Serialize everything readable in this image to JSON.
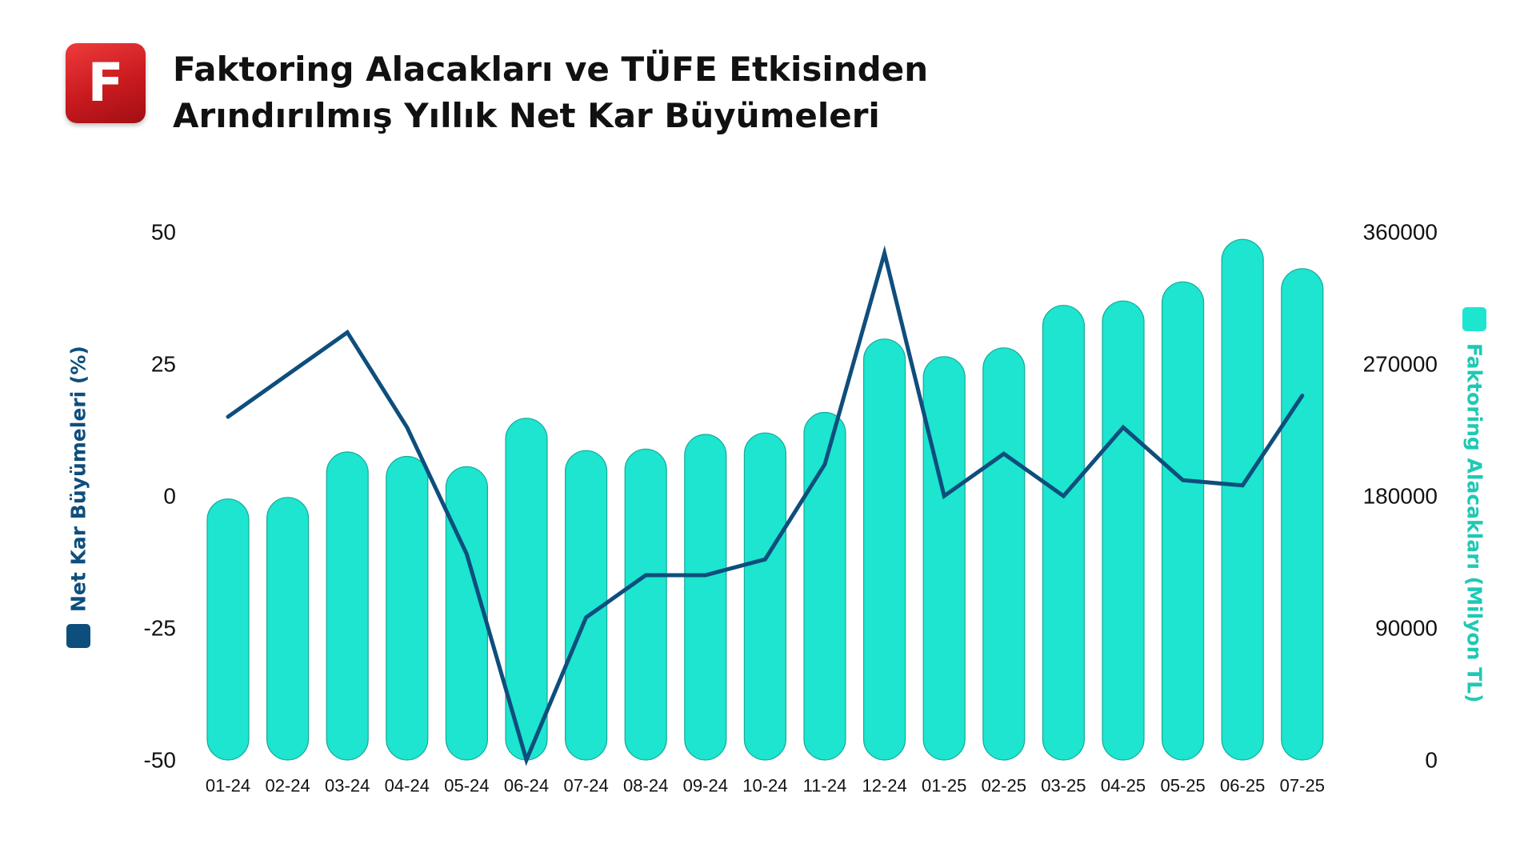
{
  "logo": {
    "letter": "F",
    "color": "#d7262b"
  },
  "title": {
    "line1": "Faktoring Alacakları ve TÜFE Etkisinden",
    "line2": "Arındırılmış Yıllık Net Kar Büyümeleri"
  },
  "chart_data": {
    "type": "bar",
    "categories": [
      "01-24",
      "02-24",
      "03-24",
      "04-24",
      "05-24",
      "06-24",
      "07-24",
      "08-24",
      "09-24",
      "10-24",
      "11-24",
      "12-24",
      "01-25",
      "02-25",
      "03-25",
      "04-25",
      "05-25",
      "06-25",
      "07-25"
    ],
    "series": [
      {
        "name": "Faktoring Alacakları (Milyon TL)",
        "type": "bar",
        "axis": "right",
        "color": "#1de5cf",
        "values": [
          178000,
          179000,
          210000,
          207000,
          200000,
          233000,
          211000,
          212000,
          222000,
          223000,
          237000,
          287000,
          275000,
          281000,
          310000,
          313000,
          326000,
          355000,
          335000
        ]
      },
      {
        "name": "Net Kar Büyümeleri (%)",
        "type": "line",
        "axis": "left",
        "color": "#0e4e7d",
        "values": [
          15,
          23,
          31,
          13,
          -11,
          -50,
          -23,
          -15,
          -15,
          -12,
          6,
          46,
          0,
          8,
          0,
          13,
          3,
          2,
          19
        ]
      }
    ],
    "left_axis": {
      "label": "Net Kar Büyümeleri (%)",
      "ylim": [
        -50,
        50
      ],
      "ticks": [
        "50",
        "25",
        "0",
        "-25",
        "-50"
      ]
    },
    "right_axis": {
      "label": "Faktoring Alacakları (Milyon TL)",
      "ylim": [
        0,
        360000
      ],
      "ticks": [
        "360000",
        "270000",
        "180000",
        "90000",
        "0"
      ]
    },
    "grid": false,
    "legend": "axis-labels"
  }
}
